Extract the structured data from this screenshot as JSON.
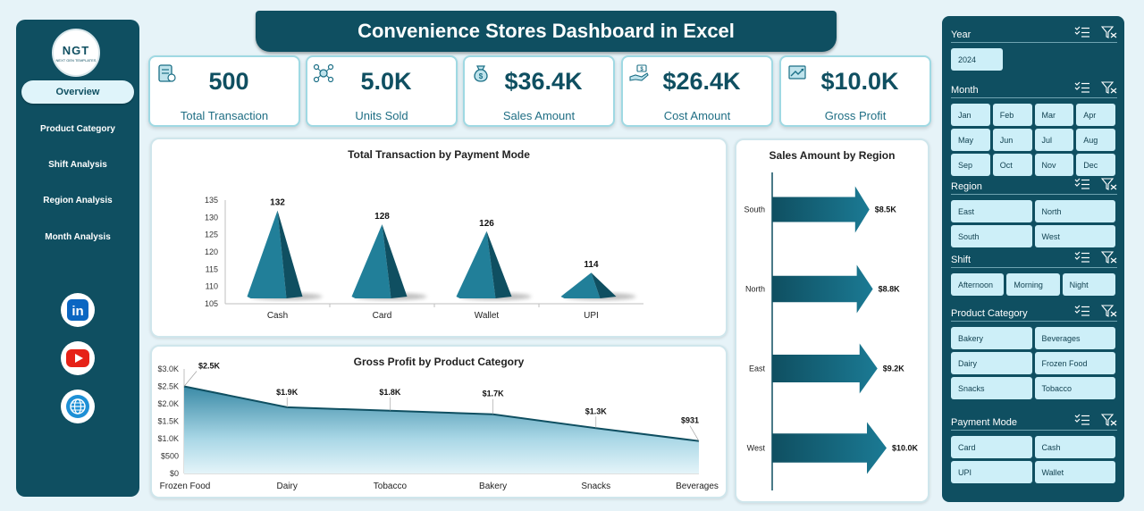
{
  "title": "Convenience Stores Dashboard in Excel",
  "logo": {
    "text": "NGT",
    "subtext": "NEXT GEN TEMPLATES"
  },
  "nav": [
    "Overview",
    "Product Category",
    "Shift Analysis",
    "Region Analysis",
    "Month Analysis"
  ],
  "social": [
    "linkedin-icon",
    "youtube-icon",
    "globe-icon"
  ],
  "kpis": [
    {
      "value": "500",
      "label": "Total Transaction",
      "icon": "receipt-icon"
    },
    {
      "value": "5.0K",
      "label": "Units Sold",
      "icon": "network-icon"
    },
    {
      "value": "$36.4K",
      "label": "Sales Amount",
      "icon": "money-bag-icon"
    },
    {
      "value": "$26.4K",
      "label": "Cost Amount",
      "icon": "hand-money-icon"
    },
    {
      "value": "$10.0K",
      "label": "Gross Profit",
      "icon": "growth-icon"
    }
  ],
  "colors": {
    "primary": "#0f4f61",
    "accent": "#1b6f86",
    "button": "#cdeff8"
  },
  "chart_data": [
    {
      "type": "bar",
      "title": "Total Transaction by Payment Mode",
      "categories": [
        "Cash",
        "Card",
        "Wallet",
        "UPI"
      ],
      "values": [
        132,
        128,
        126,
        114
      ],
      "data_labels": [
        "132",
        "128",
        "126",
        "114"
      ],
      "y_ticks": [
        "135",
        "130",
        "125",
        "120",
        "115",
        "110",
        "105"
      ],
      "ylim": [
        105,
        135
      ],
      "grid": false
    },
    {
      "type": "area",
      "title": "Gross Profit by Product Category",
      "categories": [
        "Frozen Food",
        "Dairy",
        "Tobacco",
        "Bakery",
        "Snacks",
        "Beverages"
      ],
      "values": [
        2500,
        1900,
        1800,
        1700,
        1300,
        931
      ],
      "data_labels": [
        "$2.5K",
        "$1.9K",
        "$1.8K",
        "$1.7K",
        "$1.3K",
        "$931"
      ],
      "y_ticks": [
        "$3.0K",
        "$2.5K",
        "$2.0K",
        "$1.5K",
        "$1.0K",
        "$500",
        "$0"
      ],
      "ylim": [
        0,
        3000
      ],
      "grid": false
    },
    {
      "type": "bar",
      "title": "Sales Amount by Region",
      "categories": [
        "South",
        "North",
        "East",
        "West"
      ],
      "values": [
        8500,
        8800,
        9200,
        10000
      ],
      "data_labels": [
        "$8.5K",
        "$8.8K",
        "$9.2K",
        "$10.0K"
      ],
      "orientation": "horizontal",
      "grid": false
    }
  ],
  "slicers": [
    {
      "title": "Year",
      "options": [
        "2024"
      ],
      "cols": 1
    },
    {
      "title": "Month",
      "options": [
        "Jan",
        "Feb",
        "Mar",
        "Apr",
        "May",
        "Jun",
        "Jul",
        "Aug",
        "Sep",
        "Oct",
        "Nov",
        "Dec"
      ],
      "cols": 4
    },
    {
      "title": "Region",
      "options": [
        "East",
        "North",
        "South",
        "West"
      ],
      "cols": 2
    },
    {
      "title": "Shift",
      "options": [
        "Afternoon",
        "Morning",
        "Night"
      ],
      "cols": 3
    },
    {
      "title": "Product Category",
      "options": [
        "Bakery",
        "Beverages",
        "Dairy",
        "Frozen Food",
        "Snacks",
        "Tobacco"
      ],
      "cols": 2
    },
    {
      "title": "Payment Mode",
      "options": [
        "Card",
        "Cash",
        "UPI",
        "Wallet"
      ],
      "cols": 2
    }
  ]
}
